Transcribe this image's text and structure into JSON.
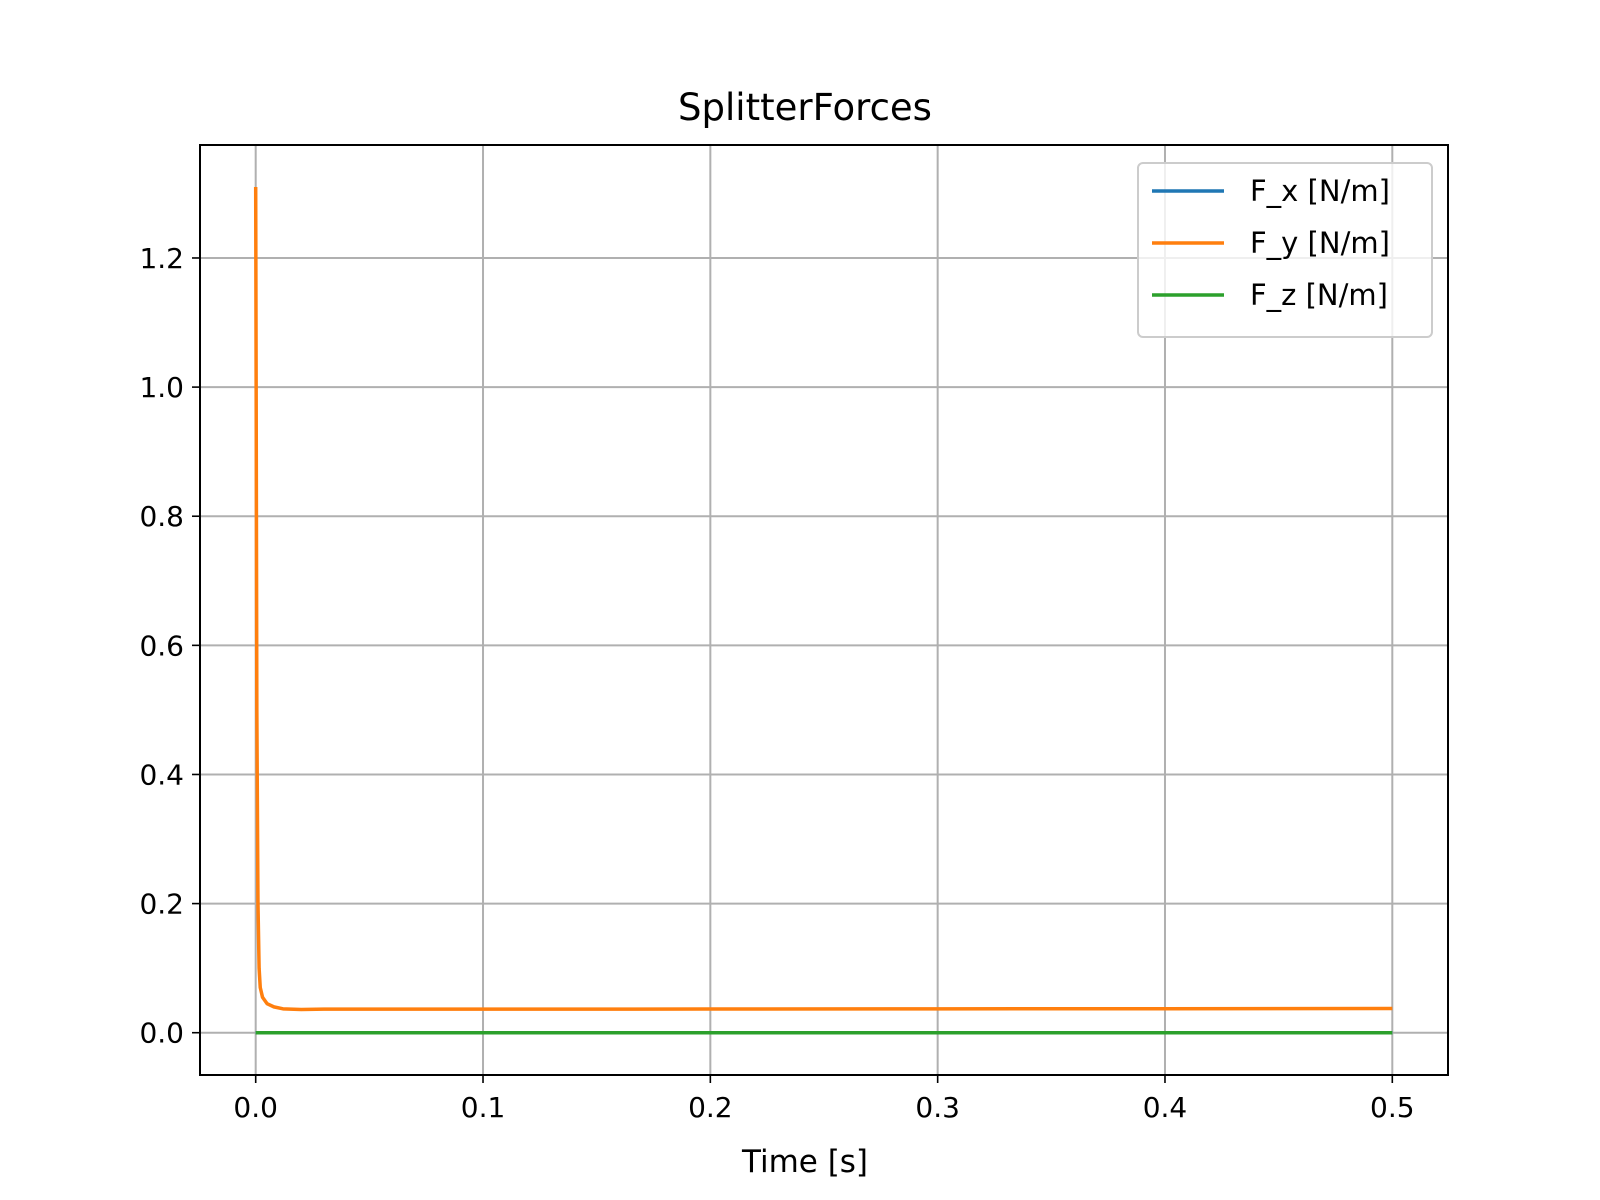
{
  "chart_data": {
    "type": "line",
    "title": "SplitterForces",
    "xlabel": "Time [s]",
    "ylabel": "",
    "xlim": [
      -0.0245,
      0.5245
    ],
    "ylim": [
      -0.0655,
      1.375
    ],
    "xticks": [
      0.0,
      0.1,
      0.2,
      0.3,
      0.4,
      0.5
    ],
    "xtick_labels": [
      "0.0",
      "0.1",
      "0.2",
      "0.3",
      "0.4",
      "0.5"
    ],
    "yticks": [
      0.0,
      0.2,
      0.4,
      0.6,
      0.8,
      1.0,
      1.2
    ],
    "ytick_labels": [
      "0.0",
      "0.2",
      "0.4",
      "0.6",
      "0.8",
      "1.0",
      "1.2"
    ],
    "grid": true,
    "legend": "top-right",
    "series": [
      {
        "name": "F_x [N/m]",
        "color": "#1f77b4",
        "x": [
          0.0,
          0.5
        ],
        "y": [
          0.0,
          0.0
        ]
      },
      {
        "name": "F_y [N/m]",
        "color": "#ff7f0e",
        "x": [
          0.0,
          0.0002,
          0.0005,
          0.001,
          0.0015,
          0.002,
          0.003,
          0.005,
          0.008,
          0.012,
          0.02,
          0.03,
          0.05,
          0.1,
          0.2,
          0.3,
          0.4,
          0.5
        ],
        "y": [
          1.31,
          1.0,
          0.5,
          0.2,
          0.1,
          0.07,
          0.055,
          0.045,
          0.04,
          0.037,
          0.036,
          0.0365,
          0.0365,
          0.0365,
          0.0367,
          0.037,
          0.0372,
          0.0375
        ]
      },
      {
        "name": "F_z [N/m]",
        "color": "#2ca02c",
        "x": [
          0.0,
          0.5
        ],
        "y": [
          0.0,
          0.0
        ]
      }
    ]
  }
}
